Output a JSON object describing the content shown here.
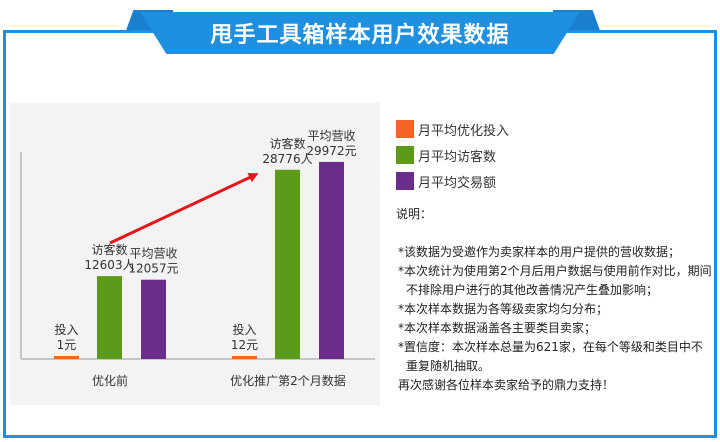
{
  "title": "甩手工具箱样本用户效果数据",
  "legend": [
    {
      "label": "月平均优化投入",
      "color": "#f26522"
    },
    {
      "label": "月平均访客数",
      "color": "#5c9a1a"
    },
    {
      "label": "月平均交易额",
      "color": "#6a2e8a"
    }
  ],
  "notes": {
    "heading": "说明：",
    "items": [
      "*该数据为受邀作为卖家样本的用户提供的营收数据；",
      "*本次统计为使用第2个月后用户数据与使用前作对比，期间不排除用户进行的其他改善情况产生叠加影响；",
      "*本次样本数据为各等级卖家均匀分布；",
      "*本次样本数据涵盖各主要类目卖家；",
      "*置信度：本次样本总量为621家，在每个等级和类目中不重复随机抽取。"
    ],
    "closing": "再次感谢各位样本卖家给予的鼎力支持！"
  },
  "chart_data": {
    "type": "bar",
    "categories": [
      "优化前",
      "优化推广第2个月数据"
    ],
    "series": [
      {
        "name": "月平均优化投入",
        "values": [
          1,
          12
        ],
        "label": "投入",
        "units": [
          "1元",
          "12元"
        ],
        "color": "#f26522"
      },
      {
        "name": "月平均访客数",
        "values": [
          12603,
          28776
        ],
        "label": "访客数",
        "units": [
          "12603人",
          "28776人"
        ],
        "color": "#5c9a1a"
      },
      {
        "name": "月平均交易额",
        "values": [
          12057,
          29972
        ],
        "label": "平均营收",
        "units": [
          "12057元",
          "29972元"
        ],
        "color": "#6a2e8a"
      }
    ],
    "ylim": [
      0,
      33000
    ],
    "grid": false,
    "legend": "right",
    "annotation": "upward-trend-arrow"
  }
}
